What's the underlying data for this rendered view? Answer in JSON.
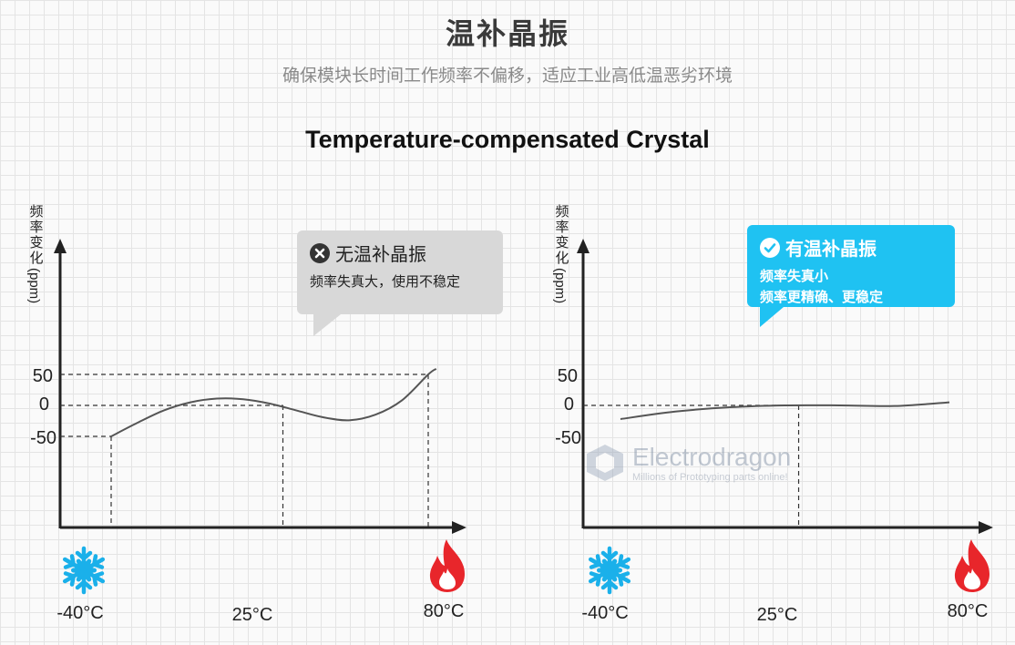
{
  "header": {
    "title": "温补晶振",
    "subtitle": "确保模块长时间工作频率不偏移，适应工业高低温恶劣环境",
    "en_title": "Temperature-compensated Crystal"
  },
  "watermark": {
    "brand": "Electrodragon",
    "tagline": "Millions of Prototyping parts online!"
  },
  "colors": {
    "curve": "#555555",
    "axis": "#222222",
    "bubble_gray": "#d8d8d8",
    "bubble_blue": "#1fc2f2",
    "snowflake": "#1ab0ea",
    "flame": "#e8262b"
  },
  "chart_data": [
    {
      "type": "line",
      "ylabel_cjk": [
        "频",
        "率",
        "变",
        "化"
      ],
      "ylabel_unit": "(ppm)",
      "yticks": [
        "50",
        "0",
        "-50"
      ],
      "xticks": [
        "-40°C",
        "25°C",
        "80°C"
      ],
      "xicons": [
        "snowflake-icon",
        "",
        "flame-icon"
      ],
      "ylim": [
        -150,
        70
      ],
      "xlim": [
        -60,
        95
      ],
      "series": [
        {
          "x": [
            -40,
            -30,
            -20,
            -10,
            0,
            10,
            20,
            30,
            40,
            50,
            60,
            70,
            80,
            83
          ],
          "y": [
            -50,
            -28,
            -8,
            5,
            11,
            10,
            3,
            -8,
            -19,
            -24,
            -15,
            8,
            50,
            59
          ]
        }
      ],
      "reference_lines": [
        {
          "x": -40,
          "y": -50
        },
        {
          "x": 25,
          "y": 0
        },
        {
          "x": 80,
          "y": 50
        }
      ],
      "callout": {
        "style": "gray",
        "icon": "x-circle-icon",
        "title": "无温补晶振",
        "lines": [
          "频率失真大，使用不稳定"
        ]
      }
    },
    {
      "type": "line",
      "ylabel_cjk": [
        "频",
        "率",
        "变",
        "化"
      ],
      "ylabel_unit": "(ppm)",
      "yticks": [
        "50",
        "0",
        "-50"
      ],
      "xticks": [
        "-40°C",
        "25°C",
        "80°C"
      ],
      "xicons": [
        "snowflake-icon",
        "",
        "flame-icon"
      ],
      "ylim": [
        -150,
        70
      ],
      "xlim": [
        -60,
        95
      ],
      "series": [
        {
          "x": [
            -40,
            -20,
            0,
            20,
            40,
            60,
            80
          ],
          "y": [
            -22,
            -10,
            -3,
            0,
            0,
            -1,
            5
          ]
        }
      ],
      "reference_lines": [
        {
          "x": 25,
          "y": 0
        }
      ],
      "callout": {
        "style": "blue",
        "icon": "check-circle-icon",
        "title": "有温补晶振",
        "lines": [
          "频率失真小",
          "频率更精确、更稳定"
        ]
      }
    }
  ]
}
